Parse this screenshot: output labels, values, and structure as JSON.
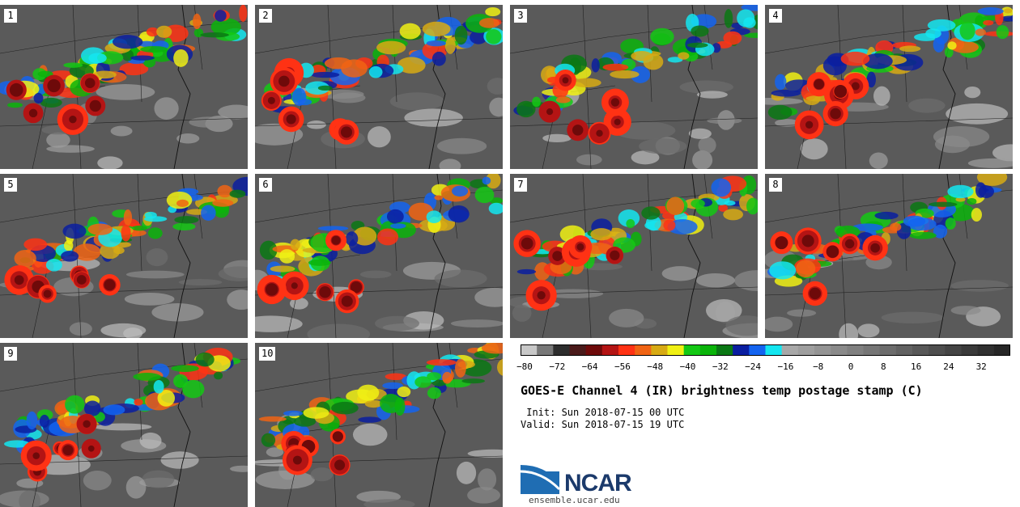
{
  "panels": [
    "1",
    "2",
    "3",
    "4",
    "5",
    "6",
    "7",
    "8",
    "9",
    "10"
  ],
  "colorbar": {
    "colors": [
      "#c8c8c8",
      "#787878",
      "#2d2d2d",
      "#4a1a1a",
      "#6e0a0a",
      "#b41414",
      "#ff3214",
      "#f06414",
      "#d7aa14",
      "#f0f014",
      "#14c814",
      "#0ab40a",
      "#0a7814",
      "#0a1ea0",
      "#1464f0",
      "#14e6f0",
      "#a8a8a8",
      "#9e9e9e",
      "#949494",
      "#8a8a8a",
      "#808080",
      "#767676",
      "#6c6c6c",
      "#626262",
      "#585858",
      "#4e4e4e",
      "#444444",
      "#3a3a3a",
      "#303030",
      "#262626"
    ],
    "tick_labels": [
      "−80",
      "−72",
      "−64",
      "−56",
      "−48",
      "−40",
      "−32",
      "−24",
      "−16",
      "−8",
      "0",
      "8",
      "16",
      "24",
      "32"
    ]
  },
  "title": "GOES-E Channel 4 (IR) brightness temp postage stamp (C)",
  "init_line": " Init: Sun 2018-07-15 00 UTC",
  "valid_line": "Valid: Sun 2018-07-15 19 UTC",
  "logo": {
    "text": "NCAR",
    "url": "ensemble.ucar.edu"
  }
}
